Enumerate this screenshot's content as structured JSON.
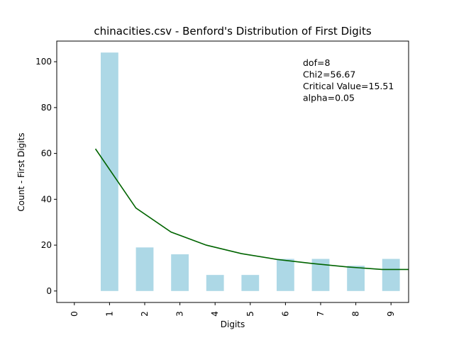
{
  "chart_data": {
    "type": "bar",
    "title": "chinacities.csv - Benford's Distribution of First Digits",
    "xlabel": "Digits",
    "ylabel": "Count - First Digits",
    "categories": [
      "0",
      "1",
      "2",
      "3",
      "4",
      "5",
      "6",
      "7",
      "8",
      "9"
    ],
    "values": [
      0,
      104,
      19,
      16,
      7,
      7,
      14,
      14,
      11,
      14
    ],
    "bar_color": "#add8e6",
    "line_series": {
      "color": "#006400",
      "x": [
        0.6,
        1.75,
        2.75,
        3.75,
        4.75,
        5.75,
        6.75,
        7.75,
        8.75,
        9.5
      ],
      "y": [
        62.0,
        36.2,
        25.7,
        20.0,
        16.3,
        13.8,
        12.0,
        10.5,
        9.4,
        9.4
      ]
    },
    "xlim": [
      -0.5,
      9.5
    ],
    "ylim": [
      -5,
      109
    ],
    "yticks": [
      0,
      20,
      40,
      60,
      80,
      100
    ],
    "annotations": [
      "dof=8",
      "Chi2=56.67",
      "Critical Value=15.51",
      "alpha=0.05"
    ],
    "grid": false,
    "legend": "none"
  }
}
